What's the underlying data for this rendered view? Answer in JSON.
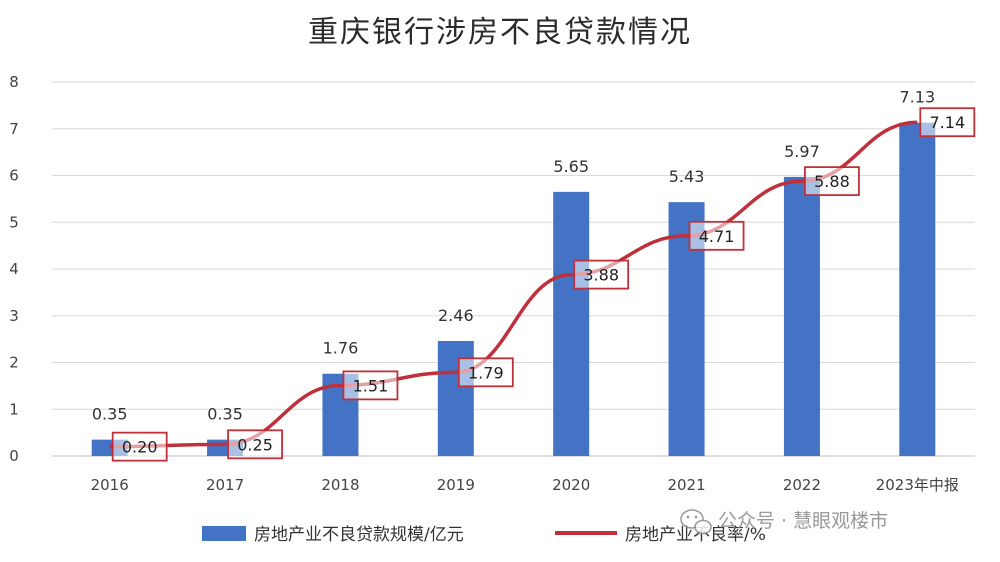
{
  "chart_data": {
    "type": "bar",
    "title": "重庆银行涉房不良贷款情况",
    "categories": [
      "2016",
      "2017",
      "2018",
      "2019",
      "2020",
      "2021",
      "2022",
      "2023年中报"
    ],
    "series": [
      {
        "name": "房地产业不良贷款规模/亿元",
        "type": "bar",
        "color": "#4472c4",
        "values": [
          0.35,
          0.35,
          1.76,
          2.46,
          5.65,
          5.43,
          5.97,
          7.13
        ],
        "labels": [
          "0.35",
          "0.35",
          "1.76",
          "2.46",
          "5.65",
          "5.43",
          "5.97",
          "7.13"
        ]
      },
      {
        "name": "房地产业不良率/%",
        "type": "line",
        "color": "#c0303a",
        "values": [
          0.2,
          0.25,
          1.51,
          1.79,
          3.88,
          4.71,
          5.88,
          7.14
        ],
        "labels": [
          "0.20",
          "0.25",
          "1.51",
          "1.79",
          "3.88",
          "4.71",
          "5.88",
          "7.14"
        ]
      }
    ],
    "ylim": [
      0,
      8
    ],
    "yticks": [
      "0",
      "1",
      "2",
      "3",
      "4",
      "5",
      "6",
      "7",
      "8"
    ],
    "grid": true,
    "legend": "bottom"
  },
  "watermark": {
    "icon": "wechat-icon",
    "text": "公众号 · 慧眼观楼市"
  }
}
